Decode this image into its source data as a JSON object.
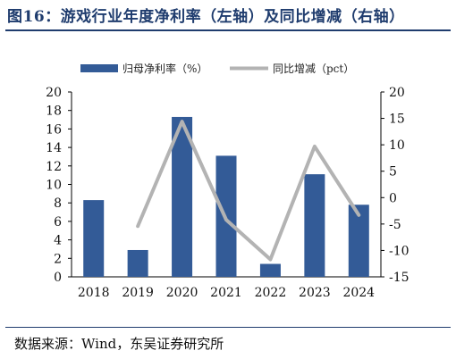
{
  "figure_title": "图16：游戏行业年度净利率（左轴）及同比增减（右轴）",
  "source_note": "数据来源：Wind，东吴证券研究所",
  "chart_data": {
    "type": "bar",
    "categories": [
      "2018",
      "2019",
      "2020",
      "2021",
      "2022",
      "2023",
      "2024"
    ],
    "series": [
      {
        "name": "归母净利率（%）",
        "type": "bar",
        "axis": "left",
        "color": "#335b97",
        "values": [
          8.3,
          2.9,
          17.3,
          13.1,
          1.4,
          11.1,
          7.8
        ]
      },
      {
        "name": "同比增减（pct）",
        "type": "line",
        "axis": "right",
        "color": "#b3b3b3",
        "values": [
          null,
          -5.4,
          14.4,
          -4.2,
          -11.7,
          9.7,
          -3.3
        ]
      }
    ],
    "left_axis": {
      "min": 0,
      "max": 20,
      "step": 2
    },
    "right_axis": {
      "min": -15,
      "max": 20,
      "step": 5
    },
    "grid": false,
    "legend_position": "top"
  }
}
